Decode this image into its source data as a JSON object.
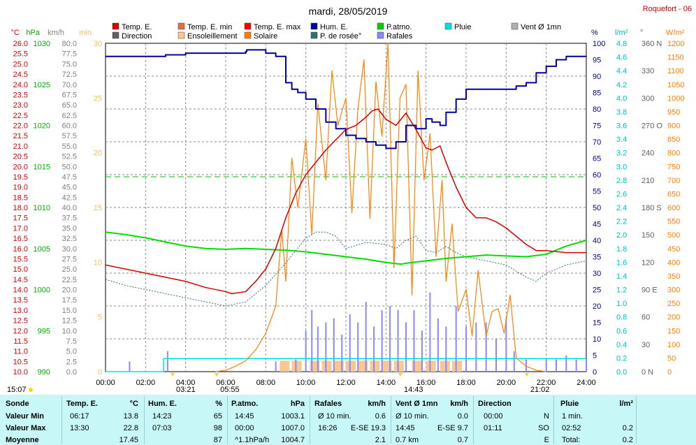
{
  "title": "mardi, 28/05/2019",
  "station": "Roquefort - 06",
  "legend": [
    {
      "label": "Temp. E.",
      "color": "#d40000"
    },
    {
      "label": "Temp. E. min",
      "color": "#e07040"
    },
    {
      "label": "Temp. E. max",
      "color": "#ff0000"
    },
    {
      "label": "Hum. E.",
      "color": "#00009c"
    },
    {
      "label": "P.atmo.",
      "color": "#00d000"
    },
    {
      "label": "Pluie",
      "color": "#00e0e0"
    },
    {
      "label": "Vent Ø 1mn",
      "color": "#b0b0b0"
    },
    {
      "label": "Direction",
      "color": "#606060"
    },
    {
      "label": "Ensoleillement",
      "color": "#f8c890"
    },
    {
      "label": "Solaire",
      "color": "#ff8000"
    },
    {
      "label": "P. de rosée°",
      "color": "#2f6f6f"
    },
    {
      "label": "Rafales",
      "color": "#8888ff"
    }
  ],
  "axes": {
    "temp": {
      "unit": "°C",
      "color": "#d40000",
      "ticks": [
        "26.0",
        "25.5",
        "25.0",
        "24.5",
        "24.0",
        "23.5",
        "23.0",
        "22.5",
        "22.0",
        "21.5",
        "21.0",
        "20.5",
        "20.0",
        "19.5",
        "19.0",
        "18.5",
        "18.0",
        "17.5",
        "17.0",
        "16.5",
        "16.0",
        "15.5",
        "15.0",
        "14.5",
        "14.0",
        "13.5",
        "13.0",
        "12.5",
        "12.0",
        "11.5",
        "11.0",
        "10.5",
        "10.0"
      ]
    },
    "press": {
      "unit": "hPa",
      "color": "#00b000",
      "ticks": [
        "1030",
        "1025",
        "1020",
        "1015",
        "1010",
        "1005",
        "1000",
        "995",
        "990"
      ]
    },
    "wind": {
      "unit": "km/h",
      "color": "#808080",
      "ticks": [
        "80.0",
        "77.5",
        "75.0",
        "72.5",
        "70.0",
        "67.5",
        "65.0",
        "62.5",
        "60.0",
        "57.5",
        "55.0",
        "52.5",
        "50.0",
        "47.5",
        "45.0",
        "42.5",
        "40.0",
        "37.5",
        "35.0",
        "32.5",
        "30.0",
        "27.5",
        "25.0",
        "22.5",
        "20.0",
        "17.5",
        "15.0",
        "12.5",
        "10.0",
        "7.5",
        "5.0",
        "2.5",
        "0.0"
      ]
    },
    "min": {
      "unit": "min",
      "color": "#f0c060",
      "ticks": [
        "30",
        "25",
        "20",
        "15",
        "10",
        "5",
        "0"
      ]
    },
    "hum": {
      "unit": "%",
      "color": "#000080",
      "ticks": [
        "100",
        "95",
        "90",
        "85",
        "80",
        "75",
        "70",
        "65",
        "60",
        "55",
        "50",
        "45",
        "40",
        "35",
        "30",
        "25",
        "20",
        "15",
        "10",
        "5",
        "0"
      ]
    },
    "rain": {
      "unit": "l/m²",
      "color": "#00c0c0",
      "ticks": [
        "4.8",
        "4.6",
        "4.4",
        "4.2",
        "4.0",
        "3.8",
        "3.6",
        "3.4",
        "3.2",
        "3.0",
        "2.8",
        "2.6",
        "2.4",
        "2.2",
        "2.0",
        "1.8",
        "1.6",
        "1.4",
        "1.2",
        "1.0",
        "0.8",
        "0.6",
        "0.4",
        "0.2",
        "0.0"
      ]
    },
    "dir": {
      "unit": "°",
      "color": "#606060",
      "ticks": [
        "360 N",
        "330",
        "300",
        "270 O",
        "240",
        "210",
        "180 S",
        "150",
        "120",
        "90 E",
        "60",
        "30",
        "0 N"
      ]
    },
    "solar": {
      "unit": "W/m²",
      "color": "#ff8000",
      "ticks": [
        "1200",
        "1150",
        "1100",
        "1050",
        "1000",
        "950",
        "900",
        "850",
        "800",
        "750",
        "700",
        "650",
        "600",
        "550",
        "500",
        "450",
        "400",
        "350",
        "300",
        "250",
        "200",
        "150",
        "100",
        "50",
        "0"
      ]
    },
    "x": {
      "ticks": [
        "00:00",
        "02:00",
        "04:00",
        "06:00",
        "08:00",
        "10:00",
        "12:00",
        "14:00",
        "16:00",
        "18:00",
        "20:00",
        "22:00",
        "24:00"
      ]
    }
  },
  "markers": {
    "left_time": "15:07",
    "sunrise1": "03:21",
    "sunrise2": "05:55",
    "noon": "14:43",
    "sunset": "21:02"
  },
  "chart_data": {
    "type": "line",
    "x_unit": "hour",
    "xlim": [
      0,
      24
    ],
    "series": [
      {
        "name": "Temp. E.",
        "axis": "temp",
        "ylim": [
          10,
          26
        ],
        "color": "#d40000",
        "x": [
          0,
          1,
          2,
          3,
          4,
          5,
          6,
          6.3,
          7,
          7.5,
          8,
          8.5,
          9,
          9.5,
          10,
          10.5,
          11,
          11.5,
          12,
          12.5,
          13,
          13.3,
          13.6,
          14,
          14.5,
          15,
          15.5,
          16,
          16.3,
          16.7,
          17,
          17.5,
          18,
          18.5,
          19,
          19.5,
          20,
          20.5,
          21,
          21.5,
          22,
          23,
          24
        ],
        "y": [
          15.2,
          15.0,
          14.8,
          14.6,
          14.4,
          14.1,
          13.9,
          13.8,
          13.9,
          14.4,
          15.0,
          16.0,
          17.5,
          18.7,
          19.6,
          20.2,
          20.8,
          21.3,
          21.8,
          22.0,
          22.4,
          22.7,
          22.8,
          22.3,
          22.0,
          22.6,
          21.8,
          20.9,
          20.8,
          21.0,
          20.2,
          19.0,
          18.0,
          17.5,
          17.5,
          17.3,
          17.0,
          16.6,
          16.2,
          15.9,
          15.9,
          15.8,
          15.8
        ]
      },
      {
        "name": "Hum. E.",
        "axis": "hum",
        "ylim": [
          0,
          100
        ],
        "color": "#00009c",
        "x": [
          0,
          1,
          2,
          3,
          4,
          5,
          6,
          7,
          7.05,
          8,
          8.5,
          9,
          9.3,
          9.6,
          10,
          10.5,
          11,
          11.5,
          12,
          12.5,
          13,
          13.5,
          14,
          14.5,
          15,
          15.5,
          16,
          16.3,
          16.7,
          17,
          17.5,
          18,
          18.5,
          19,
          19.5,
          20,
          20.5,
          21,
          21.5,
          22,
          22.5,
          23,
          23.5,
          24
        ],
        "y": [
          96,
          96,
          96,
          96.5,
          97,
          97,
          97,
          97.5,
          98,
          97,
          96,
          88,
          86,
          85,
          83,
          80,
          76,
          74,
          72,
          71,
          70,
          69,
          68,
          70,
          75,
          74,
          77,
          76,
          75,
          79,
          83,
          86,
          86,
          86,
          86,
          86,
          87,
          88,
          91,
          93,
          95,
          96,
          96,
          96
        ]
      },
      {
        "name": "P. de rosée°",
        "axis": "temp",
        "ylim": [
          10,
          26
        ],
        "color": "#2f6f6f",
        "x": [
          0,
          1,
          2,
          3,
          4,
          5,
          6,
          7,
          8,
          9,
          10,
          10.5,
          11,
          11.5,
          12,
          13,
          14,
          14.5,
          15,
          15.5,
          16,
          16.5,
          17,
          17.5,
          18,
          18.5,
          19,
          20,
          21,
          21.5,
          22,
          23,
          24
        ],
        "y": [
          14.5,
          14.2,
          14.0,
          13.8,
          13.6,
          13.4,
          13.2,
          13.4,
          14.2,
          15.3,
          16.5,
          16.8,
          16.8,
          16.6,
          16.0,
          16.3,
          16.2,
          16.0,
          16.4,
          16.6,
          15.9,
          15.8,
          16.1,
          15.8,
          15.6,
          15.5,
          15.4,
          15.2,
          14.6,
          14.4,
          14.8,
          15.2,
          15.4
        ]
      },
      {
        "name": "P.atmo.",
        "axis": "press",
        "ylim": [
          990,
          1030
        ],
        "color": "#00dd00",
        "x": [
          0,
          1,
          2,
          3,
          4,
          5,
          6,
          7,
          8,
          9,
          10,
          11,
          12,
          13,
          14,
          14.75,
          15,
          16,
          17,
          18,
          19,
          20,
          21,
          22,
          23,
          24
        ],
        "y": [
          1007.0,
          1006.7,
          1006.3,
          1005.8,
          1005.3,
          1005.0,
          1004.9,
          1005.0,
          1004.9,
          1004.8,
          1004.6,
          1004.3,
          1004.0,
          1003.7,
          1003.3,
          1003.1,
          1003.2,
          1003.5,
          1003.8,
          1004.0,
          1004.2,
          1004.1,
          1004.0,
          1004.3,
          1005.3,
          1006.0
        ]
      },
      {
        "name": "Solaire",
        "axis": "solar",
        "ylim": [
          0,
          1200
        ],
        "color": "#ff8000",
        "x": [
          5.5,
          6,
          6.5,
          7,
          7.5,
          8,
          8.5,
          8.8,
          9,
          9.3,
          9.6,
          10,
          10.3,
          10.6,
          11,
          11.3,
          11.6,
          12,
          12.3,
          12.6,
          12.9,
          13.2,
          13.5,
          13.8,
          14.1,
          14.4,
          14.7,
          15,
          15.3,
          15.6,
          15.9,
          16.2,
          16.5,
          16.8,
          17,
          17.3,
          17.6,
          18,
          18.3,
          18.6,
          19,
          19.3,
          19.6,
          19.9,
          20.2,
          20.5,
          21,
          21.5,
          22
        ],
        "y": [
          0,
          5,
          20,
          40,
          80,
          140,
          240,
          520,
          330,
          780,
          600,
          850,
          500,
          980,
          700,
          1100,
          900,
          1000,
          580,
          960,
          1140,
          560,
          1060,
          860,
          1200,
          380,
          1000,
          1050,
          280,
          1100,
          700,
          870,
          420,
          700,
          330,
          540,
          220,
          300,
          130,
          370,
          130,
          220,
          230,
          140,
          280,
          50,
          20,
          5,
          0
        ]
      },
      {
        "name": "Rafales",
        "axis": "wind",
        "ylim": [
          0,
          80
        ],
        "color": "#8888ff",
        "x": [
          1.2,
          3.1,
          8.5,
          9.5,
          10,
          10.3,
          10.6,
          11,
          11.4,
          11.8,
          12.2,
          12.6,
          13,
          13.4,
          13.8,
          14.2,
          14.6,
          15,
          15.4,
          15.8,
          16.2,
          16.6,
          17,
          17.5,
          18,
          18.5,
          19,
          19.5,
          20,
          20.4,
          21,
          21.5,
          22,
          22.5,
          23,
          23.5,
          24
        ],
        "y": [
          2.5,
          5,
          2.5,
          3,
          10,
          15,
          11,
          12,
          13,
          9,
          14,
          12,
          17,
          11,
          15,
          16,
          15,
          12,
          15,
          10,
          19.3,
          13,
          11,
          16,
          11,
          12,
          12,
          8,
          13,
          5,
          3,
          0,
          3,
          3,
          4,
          3,
          3
        ]
      },
      {
        "name": "Pluie",
        "axis": "rain",
        "ylim": [
          0,
          5
        ],
        "color": "#00e0e0",
        "x": [
          0,
          2.85,
          2.9,
          24
        ],
        "y": [
          0,
          0,
          0.2,
          0.2
        ]
      },
      {
        "name": "Ensoleillement",
        "axis": "min",
        "ylim": [
          0,
          30
        ],
        "color": "#f8c890",
        "bars_x": [
          8.7,
          9.3,
          10.2,
          10.8,
          11.4,
          12,
          12.6,
          13.2,
          13.8,
          14.4,
          15.3,
          16,
          16.7,
          17.3
        ],
        "bars_y": [
          1,
          1,
          1,
          1,
          1,
          1,
          1,
          1,
          1,
          1,
          1,
          1,
          1,
          1
        ]
      }
    ],
    "reference_lines": [
      {
        "axis": "temp",
        "value": 19.5,
        "color": "#00c000",
        "style": "dashed"
      }
    ]
  },
  "summary": {
    "headers": [
      "Sonde",
      "Temp. E.",
      "°C",
      "Hum. E.",
      "%",
      "P.atmo.",
      "hPa",
      "Rafales",
      "km/h",
      "Vent Ø 1mn",
      "km/h",
      "Direction",
      "Pluie",
      "l/m²"
    ],
    "rows": [
      {
        "label": "Valeur Min",
        "c": [
          "06:17",
          "13.8",
          "14:23",
          "65",
          "14:45",
          "1003.1",
          "Ø 10 min.",
          "0.6",
          "Ø 10 min.",
          "0.0",
          "00:00",
          "N",
          "1 min.",
          ""
        ]
      },
      {
        "label": "Valeur Max",
        "c": [
          "13:30",
          "22.8",
          "07:03",
          "98",
          "00:00",
          "1007.0",
          "16:26",
          "E-SE 19.3",
          "14:45",
          "E-SE 9.7",
          "01:11",
          "SO",
          "02:52",
          "0.2"
        ]
      },
      {
        "label": "Moyenne",
        "c": [
          "",
          "17.45",
          "",
          "87",
          "^1.1hPa/h",
          "1004.7",
          "",
          "2.1",
          "0.7 km",
          "0.7",
          "",
          "E",
          "Total:",
          "0.2"
        ]
      }
    ]
  }
}
